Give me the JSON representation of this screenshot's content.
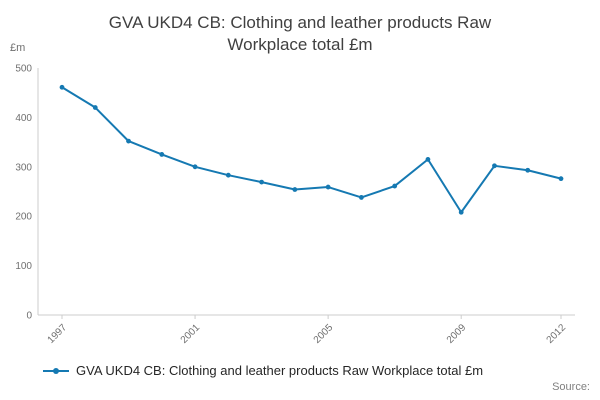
{
  "header": {
    "title": "GVA UKD4 CB: Clothing and leather products Raw Workplace total £m"
  },
  "chart_data": {
    "type": "line",
    "title": "GVA UKD4 CB: Clothing and leather products Raw Workplace total £m",
    "xlabel": "",
    "ylabel": "£m",
    "x": [
      1997,
      1998,
      1999,
      2000,
      2001,
      2002,
      2003,
      2004,
      2005,
      2006,
      2007,
      2008,
      2009,
      2010,
      2011,
      2012
    ],
    "values": [
      461,
      420,
      352,
      325,
      300,
      283,
      269,
      254,
      259,
      238,
      261,
      315,
      208,
      302,
      293,
      276
    ],
    "ylim": [
      0,
      500
    ],
    "yticks": [
      0,
      100,
      200,
      300,
      400,
      500
    ],
    "xticks": [
      1997,
      2001,
      2005,
      2009,
      2012
    ],
    "line_color": "#1579b2",
    "axis_color": "#cccccc",
    "tick_label_color": "#707070",
    "grid": false,
    "legend_position": "bottom-left",
    "legend": "GVA UKD4 CB: Clothing and leather products Raw Workplace total £m"
  },
  "footer": {
    "source_label": "Source:"
  }
}
